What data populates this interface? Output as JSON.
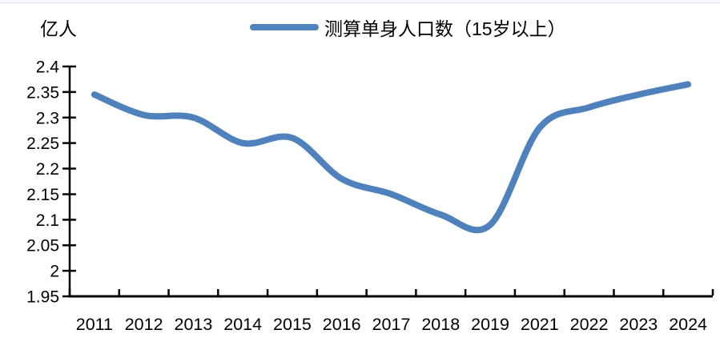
{
  "chart_data": {
    "type": "line",
    "title": "",
    "ylabel": "亿人",
    "xlabel": "",
    "legend": "测算单身人口数（15岁以上）",
    "legend_position": "top-center",
    "grid": false,
    "smooth": true,
    "line_color": "#4F81BD",
    "axis_color": "#000000",
    "categories": [
      "2011",
      "2012",
      "2013",
      "2014",
      "2015",
      "2016",
      "2017",
      "2018",
      "2019",
      "2021",
      "2022",
      "2023",
      "2024"
    ],
    "values": [
      2.345,
      2.305,
      2.3,
      2.25,
      2.26,
      2.18,
      2.15,
      2.11,
      2.09,
      2.28,
      2.32,
      2.345,
      2.365
    ],
    "ylim": [
      1.95,
      2.4
    ],
    "y_ticks": [
      2.4,
      2.35,
      2.3,
      2.25,
      2.2,
      2.15,
      2.1,
      2.05,
      2.0,
      1.95
    ],
    "y_tick_labels": [
      "2.4",
      "2.35",
      "2.3",
      "2.25",
      "2.2",
      "2.15",
      "2.1",
      "2.05",
      "2",
      "1.95"
    ]
  }
}
